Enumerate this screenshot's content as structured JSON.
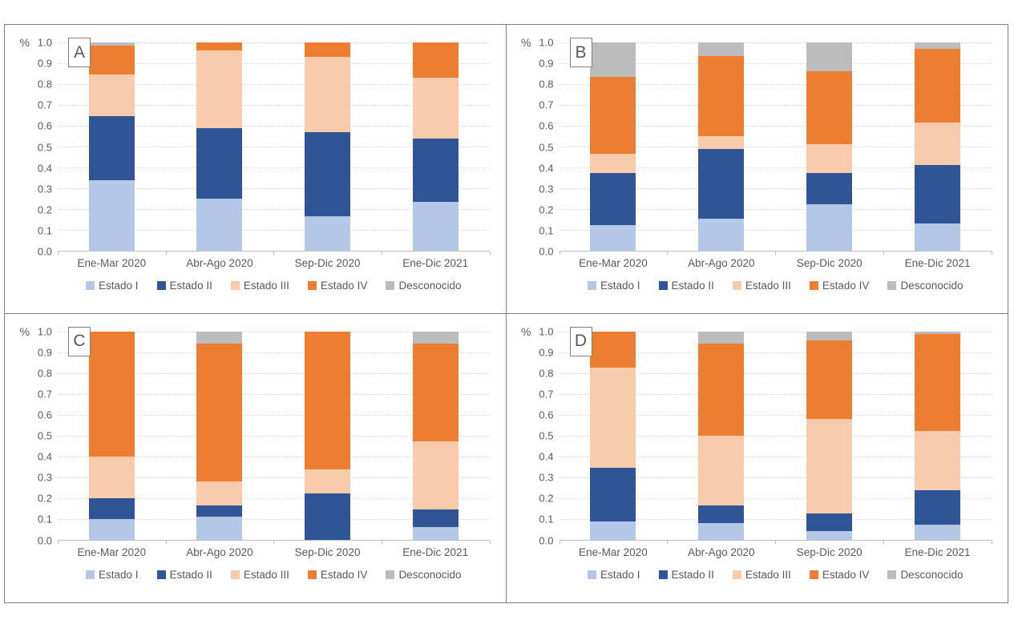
{
  "style": {
    "background": "#ffffff",
    "frame_border_color": "#7f7f7f",
    "grid_color": "#d9d9d9",
    "axis_line_color": "#bfbfbf",
    "text_color": "#595959"
  },
  "chart_data": [
    {
      "type": "bar",
      "variant": "stacked-100pct",
      "panel_label": "A",
      "ylabel": "%",
      "ylim": [
        0.0,
        1.0
      ],
      "grid": true,
      "legend_position": "bottom",
      "yticks": [
        "1.0",
        "0.9",
        "0.8",
        "0.7",
        "0.6",
        "0.5",
        "0.4",
        "0.3",
        "0.2",
        "0.1",
        "0.0"
      ],
      "categories": [
        "Ene-Mar 2020",
        "Abr-Ago 2020",
        "Sep-Dic 2020",
        "Ene-Dic 2021"
      ],
      "series": [
        {
          "name": "Estado I",
          "color": "#b4c7e7",
          "values": [
            0.34,
            0.25,
            0.165,
            0.235
          ]
        },
        {
          "name": "Estado II",
          "color": "#2f5597",
          "values": [
            0.305,
            0.34,
            0.405,
            0.305
          ]
        },
        {
          "name": "Estado III",
          "color": "#f8cbad",
          "values": [
            0.2,
            0.37,
            0.36,
            0.29
          ]
        },
        {
          "name": "Estado IV",
          "color": "#ed7d31",
          "values": [
            0.14,
            0.04,
            0.07,
            0.17
          ]
        },
        {
          "name": "Desconocido",
          "color": "#bcbcbc",
          "values": [
            0.015,
            0.0,
            0.0,
            0.0
          ]
        }
      ]
    },
    {
      "type": "bar",
      "variant": "stacked-100pct",
      "panel_label": "B",
      "ylabel": "%",
      "ylim": [
        0.0,
        1.0
      ],
      "grid": true,
      "legend_position": "bottom",
      "yticks": [
        "1.0",
        "0.9",
        "0.8",
        "0.7",
        "0.6",
        "0.5",
        "0.4",
        "0.3",
        "0.2",
        "0.1",
        "0.0"
      ],
      "categories": [
        "Ene-Mar 2020",
        "Abr-Ago 2020",
        "Sep-Dic 2020",
        "Ene-Dic 2021"
      ],
      "series": [
        {
          "name": "Estado I",
          "color": "#b4c7e7",
          "values": [
            0.125,
            0.155,
            0.225,
            0.13
          ]
        },
        {
          "name": "Estado II",
          "color": "#2f5597",
          "values": [
            0.25,
            0.335,
            0.15,
            0.28
          ]
        },
        {
          "name": "Estado III",
          "color": "#f8cbad",
          "values": [
            0.09,
            0.06,
            0.135,
            0.205
          ]
        },
        {
          "name": "Estado IV",
          "color": "#ed7d31",
          "values": [
            0.37,
            0.385,
            0.35,
            0.355
          ]
        },
        {
          "name": "Desconocido",
          "color": "#bcbcbc",
          "values": [
            0.165,
            0.065,
            0.14,
            0.03
          ]
        }
      ]
    },
    {
      "type": "bar",
      "variant": "stacked-100pct",
      "panel_label": "C",
      "ylabel": "%",
      "ylim": [
        0.0,
        1.0
      ],
      "grid": true,
      "legend_position": "bottom",
      "yticks": [
        "1.0",
        "0.9",
        "0.8",
        "0.7",
        "0.6",
        "0.5",
        "0.4",
        "0.3",
        "0.2",
        "0.1",
        "0.0"
      ],
      "categories": [
        "Ene-Mar 2020",
        "Abr-Ago 2020",
        "Sep-Dic 2020",
        "Ene-Dic 2021"
      ],
      "series": [
        {
          "name": "Estado I",
          "color": "#b4c7e7",
          "values": [
            0.1,
            0.11,
            0.0,
            0.06
          ]
        },
        {
          "name": "Estado II",
          "color": "#2f5597",
          "values": [
            0.1,
            0.055,
            0.22,
            0.085
          ]
        },
        {
          "name": "Estado III",
          "color": "#f8cbad",
          "values": [
            0.2,
            0.115,
            0.115,
            0.325
          ]
        },
        {
          "name": "Estado IV",
          "color": "#ed7d31",
          "values": [
            0.6,
            0.66,
            0.665,
            0.47
          ]
        },
        {
          "name": "Desconocido",
          "color": "#bcbcbc",
          "values": [
            0.0,
            0.06,
            0.0,
            0.06
          ]
        }
      ]
    },
    {
      "type": "bar",
      "variant": "stacked-100pct",
      "panel_label": "D",
      "ylabel": "%",
      "ylim": [
        0.0,
        1.0
      ],
      "grid": true,
      "legend_position": "bottom",
      "yticks": [
        "1.0",
        "0.9",
        "0.8",
        "0.7",
        "0.6",
        "0.5",
        "0.4",
        "0.3",
        "0.2",
        "0.1",
        "0.0"
      ],
      "categories": [
        "Ene-Mar 2020",
        "Abr-Ago 2020",
        "Sep-Dic 2020",
        "Ene-Dic 2021"
      ],
      "series": [
        {
          "name": "Estado I",
          "color": "#b4c7e7",
          "values": [
            0.085,
            0.08,
            0.04,
            0.07
          ]
        },
        {
          "name": "Estado II",
          "color": "#2f5597",
          "values": [
            0.26,
            0.085,
            0.085,
            0.165
          ]
        },
        {
          "name": "Estado III",
          "color": "#f8cbad",
          "values": [
            0.48,
            0.335,
            0.455,
            0.285
          ]
        },
        {
          "name": "Estado IV",
          "color": "#ed7d31",
          "values": [
            0.175,
            0.44,
            0.375,
            0.465
          ]
        },
        {
          "name": "Desconocido",
          "color": "#bcbcbc",
          "values": [
            0.0,
            0.06,
            0.045,
            0.015
          ]
        }
      ]
    }
  ]
}
